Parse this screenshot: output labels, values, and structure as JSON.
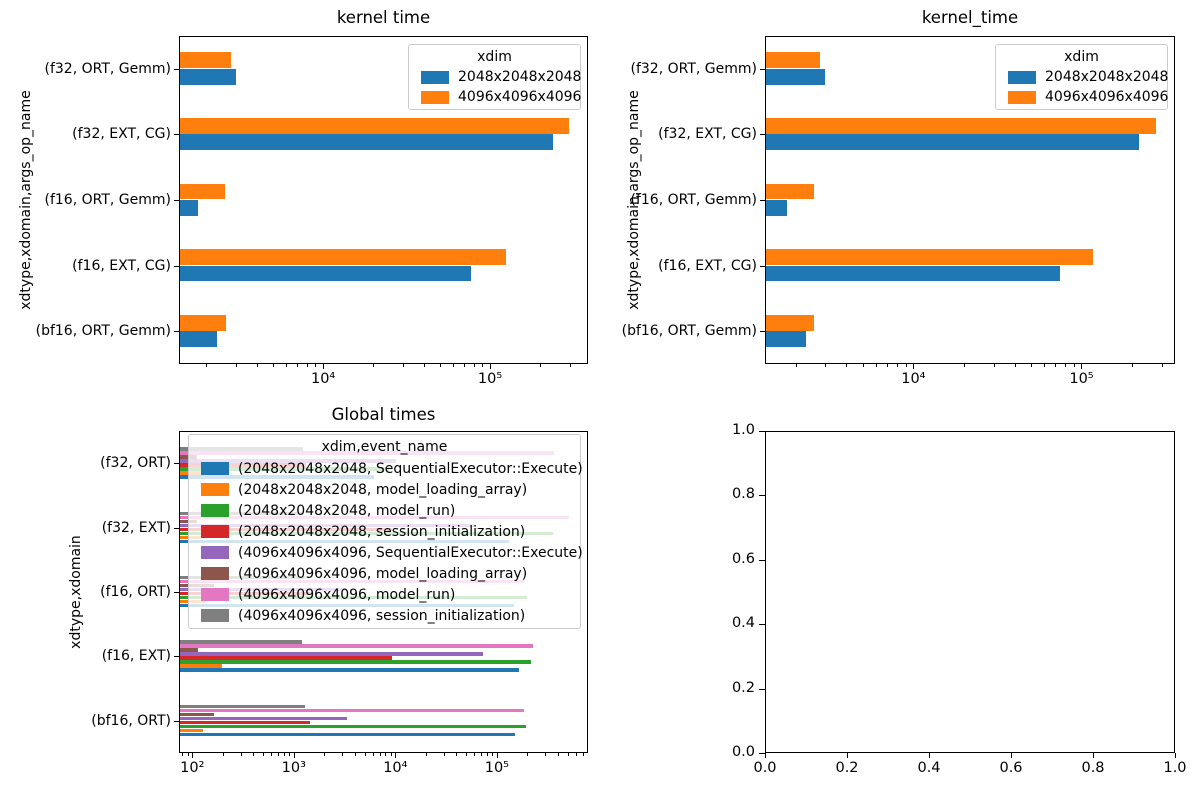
{
  "figure": {
    "background": "#ffffff"
  },
  "chart_data": [
    {
      "type": "barh",
      "title": "kernel time",
      "xlabel": "",
      "ylabel": "xdtype,xdomain,args_op_name",
      "xscale": "log",
      "xlim": [
        1370,
        386000
      ],
      "grid": false,
      "categories": [
        "(f32, ORT, Gemm)",
        "(f32, EXT, CG)",
        "(f16, ORT, Gemm)",
        "(f16, EXT, CG)",
        "(bf16, ORT, Gemm)"
      ],
      "xticks": [
        {
          "v": 10000,
          "label": "10⁴"
        },
        {
          "v": 100000,
          "label": "10⁵"
        }
      ],
      "legend": {
        "title": "xdim",
        "position": "upper right"
      },
      "series": [
        {
          "name": "2048x2048x2048",
          "color": "#1f77b4",
          "values": [
            2970,
            235000,
            1760,
            76000,
            2290
          ]
        },
        {
          "name": "4096x4096x4096",
          "color": "#ff7f0e",
          "values": [
            2770,
            293000,
            2550,
            123000,
            2570
          ]
        }
      ]
    },
    {
      "type": "barh",
      "title": "kernel_time",
      "xlabel": "",
      "ylabel": "xdtype,xdomain,args_op_name",
      "xscale": "log",
      "xlim": [
        1310,
        360000
      ],
      "grid": false,
      "categories": [
        "(f32, ORT, Gemm)",
        "(f32, EXT, CG)",
        "(f16, ORT, Gemm)",
        "(f16, EXT, CG)",
        "(bf16, ORT, Gemm)"
      ],
      "xticks": [
        {
          "v": 10000,
          "label": "10⁴"
        },
        {
          "v": 100000,
          "label": "10⁵"
        }
      ],
      "legend": {
        "title": "xdim",
        "position": "upper right"
      },
      "series": [
        {
          "name": "2048x2048x2048",
          "color": "#1f77b4",
          "values": [
            2930,
            217000,
            1750,
            73000,
            2270
          ]
        },
        {
          "name": "4096x4096x4096",
          "color": "#ff7f0e",
          "values": [
            2740,
            274000,
            2520,
            116000,
            2530
          ]
        }
      ]
    },
    {
      "type": "barh",
      "title": "Global times",
      "xlabel": "",
      "ylabel": "xdtype,xdomain",
      "xscale": "log",
      "xlim": [
        74,
        790000
      ],
      "grid": false,
      "categories": [
        "(f32, ORT)",
        "(f32, EXT)",
        "(f16, ORT)",
        "(f16, EXT)",
        "(bf16, ORT)"
      ],
      "xticks": [
        {
          "v": 100,
          "label": "10²"
        },
        {
          "v": 1000,
          "label": "10³"
        },
        {
          "v": 10000,
          "label": "10⁴"
        },
        {
          "v": 100000,
          "label": "10⁵"
        }
      ],
      "legend": {
        "title": "xdim,event_name",
        "position": "upper left"
      },
      "series": [
        {
          "name": "(2048x2048x2048, SequentialExecutor::Execute)",
          "color": "#1f77b4",
          "values": [
            6000,
            130000,
            145000,
            161000,
            147000
          ]
        },
        {
          "name": "(2048x2048x2048, model_loading_array)",
          "color": "#ff7f0e",
          "values": [
            120,
            120,
            130,
            190,
            125
          ]
        },
        {
          "name": "(2048x2048x2048, model_run)",
          "color": "#2ca02c",
          "values": [
            8500,
            350000,
            195000,
            211000,
            189000
          ]
        },
        {
          "name": "(2048x2048x2048, session_initialization)",
          "color": "#d62728",
          "values": [
            1300,
            9000,
            1400,
            9100,
            1410
          ]
        },
        {
          "name": "(4096x4096x4096, SequentialExecutor::Execute)",
          "color": "#9467bd",
          "values": [
            10000,
            60000,
            3200,
            71000,
            3250
          ]
        },
        {
          "name": "(4096x4096x4096, model_loading_array)",
          "color": "#8c564b",
          "values": [
            110,
            110,
            160,
            112,
            161
          ]
        },
        {
          "name": "(4096x4096x4096, model_run)",
          "color": "#e377c2",
          "values": [
            360000,
            500000,
            180000,
            221000,
            180000
          ]
        },
        {
          "name": "(4096x4096x4096, session_initialization)",
          "color": "#7f7f7f",
          "values": [
            1200,
            1200,
            1250,
            1170,
            1250
          ]
        }
      ]
    },
    {
      "type": "empty",
      "title": "",
      "xlim": [
        0,
        1
      ],
      "ylim": [
        0,
        1
      ],
      "xticks": [
        {
          "v": 0,
          "label": "0.0"
        },
        {
          "v": 0.2,
          "label": "0.2"
        },
        {
          "v": 0.4,
          "label": "0.4"
        },
        {
          "v": 0.6,
          "label": "0.6"
        },
        {
          "v": 0.8,
          "label": "0.8"
        },
        {
          "v": 1.0,
          "label": "1.0"
        }
      ],
      "yticks": [
        {
          "v": 0,
          "label": "0.0"
        },
        {
          "v": 0.2,
          "label": "0.2"
        },
        {
          "v": 0.4,
          "label": "0.4"
        },
        {
          "v": 0.6,
          "label": "0.6"
        },
        {
          "v": 0.8,
          "label": "0.8"
        },
        {
          "v": 1.0,
          "label": "1.0"
        }
      ]
    }
  ]
}
